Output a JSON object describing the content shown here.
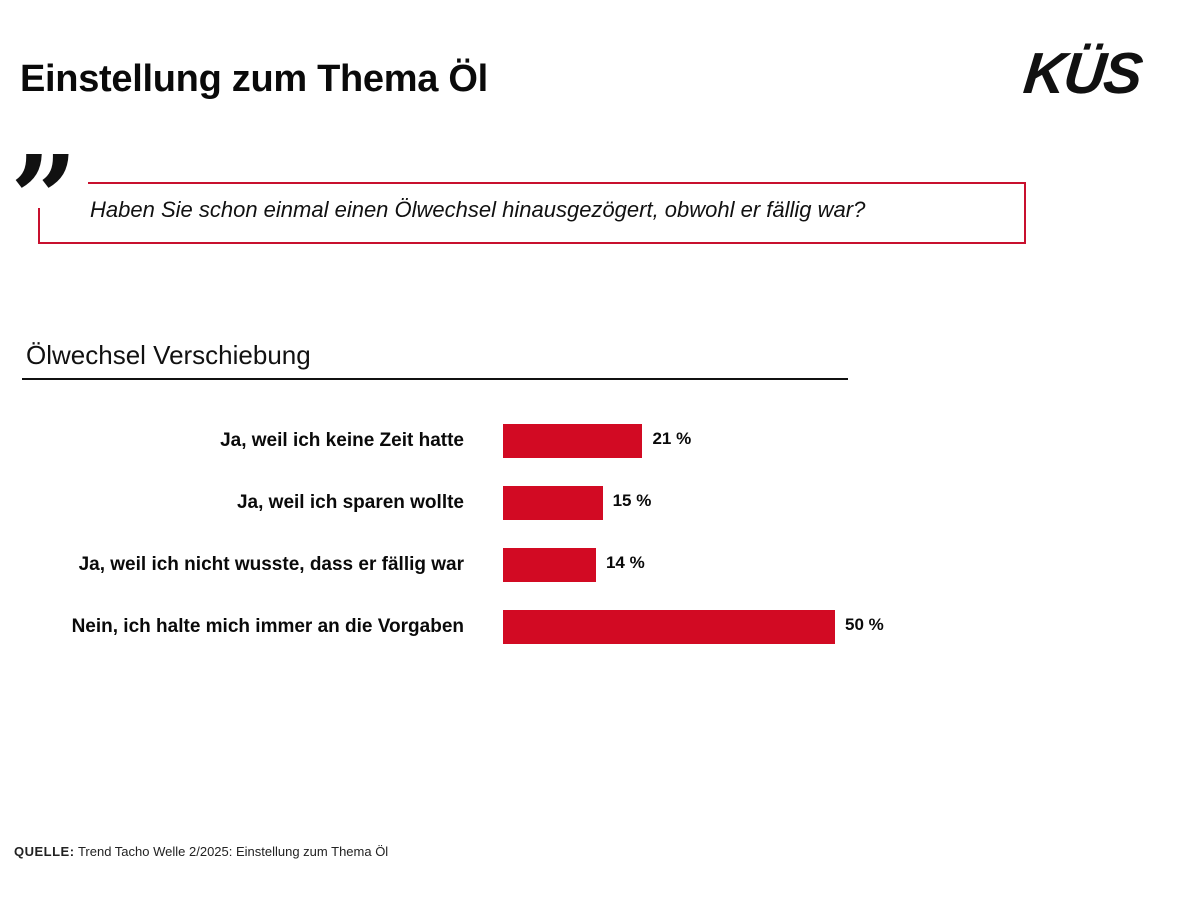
{
  "header": {
    "title": "Einstellung zum Thema Öl",
    "logo_text": "KÜS"
  },
  "question": {
    "quote_glyph": "”",
    "text": "Haben Sie schon einmal einen Ölwechsel hinausgezögert, obwohl er fällig war?"
  },
  "colors": {
    "accent": "#c8102e",
    "bar": "#d20a23",
    "text": "#111111"
  },
  "chart_data": {
    "type": "bar",
    "orientation": "horizontal",
    "title": "Ölwechsel Verschiebung",
    "categories": [
      "Ja, weil ich keine Zeit hatte",
      "Ja, weil ich sparen wollte",
      "Ja, weil ich nicht wusste, dass er fällig war",
      "Nein, ich halte mich immer an die Vorgaben"
    ],
    "values": [
      21,
      15,
      14,
      50
    ],
    "value_labels": [
      "21 %",
      "15 %",
      "14 %",
      "50 %"
    ],
    "unit": "%",
    "xlim": [
      0,
      50
    ],
    "grid": false,
    "legend": "none"
  },
  "footer": {
    "source_label": "QUELLE:",
    "source_text": "Trend Tacho Welle 2/2025: Einstellung zum Thema Öl"
  }
}
